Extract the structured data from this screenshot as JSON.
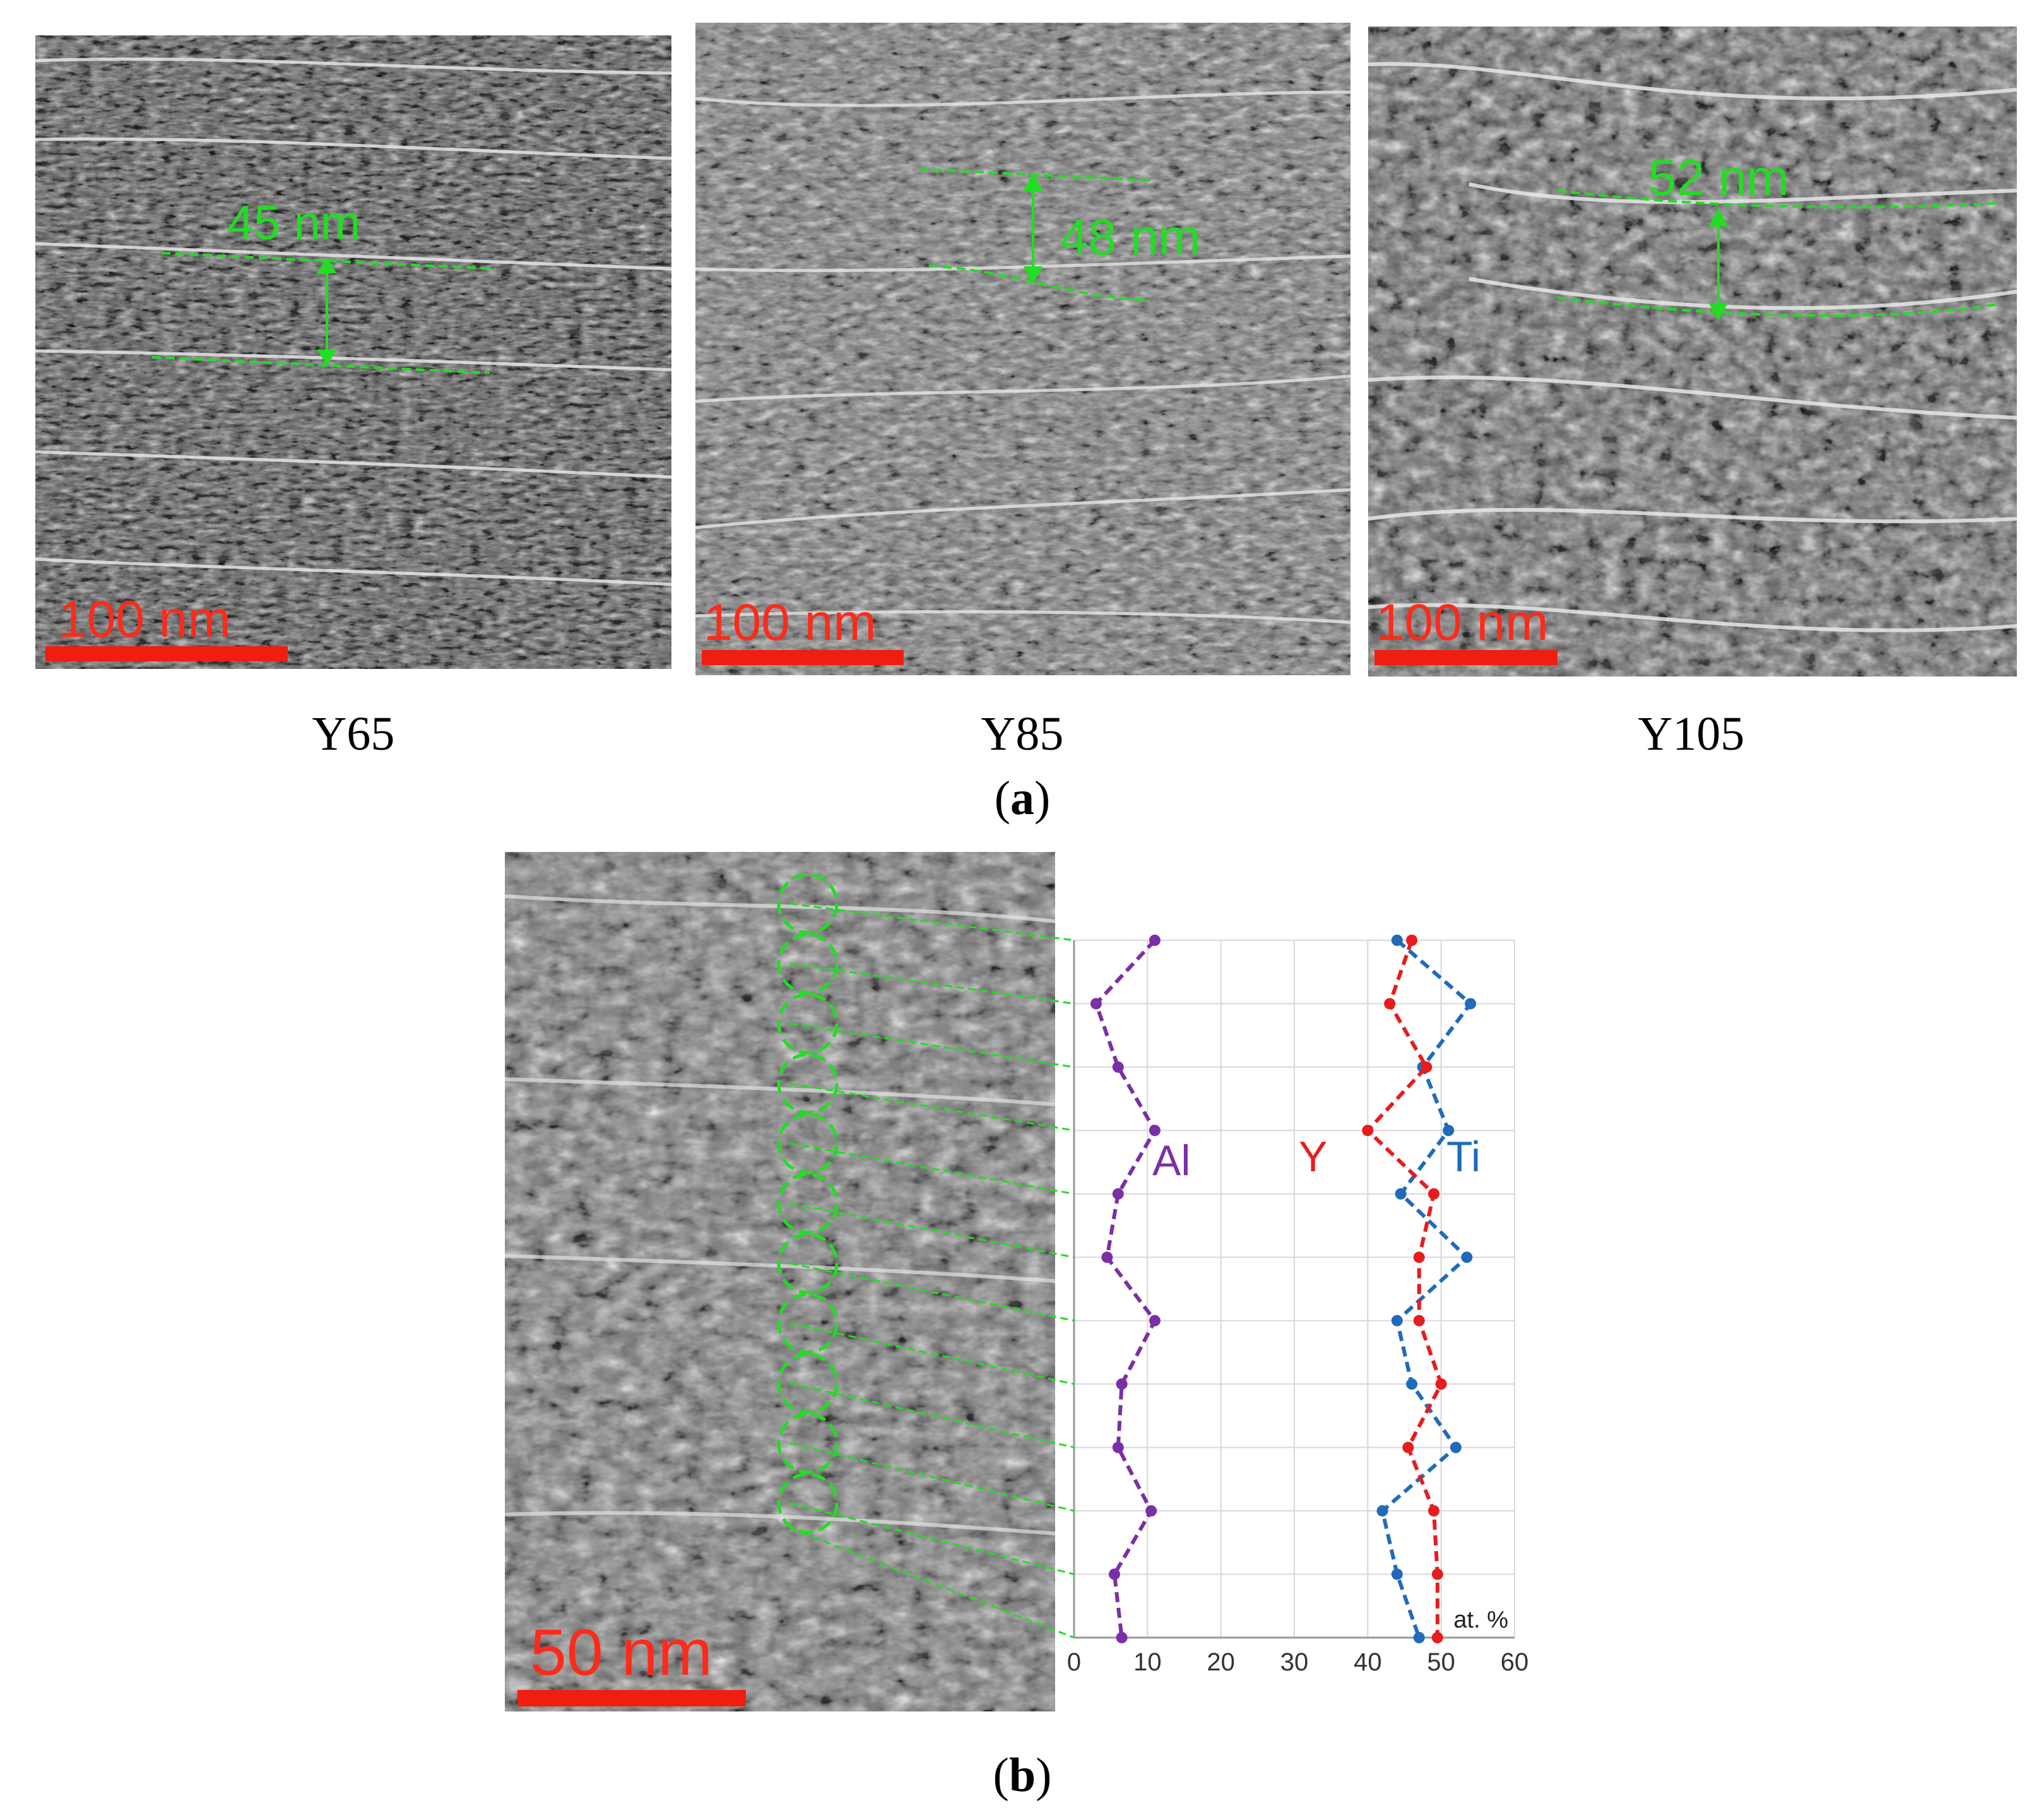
{
  "panel_a": {
    "label_open": "(",
    "label_letter": "a",
    "label_close": ")",
    "images": [
      {
        "caption": "Y65",
        "scale": "100 nm",
        "measurement": "45 nm"
      },
      {
        "caption": "Y85",
        "scale": "100 nm",
        "measurement": "48 nm"
      },
      {
        "caption": "Y105",
        "scale": "100 nm",
        "measurement": "52 nm"
      }
    ]
  },
  "panel_b": {
    "label_open": "(",
    "label_letter": "b",
    "label_close": ")",
    "scale": "50 nm",
    "element_labels": {
      "al": "Al",
      "y": "Y",
      "ti": "Ti"
    }
  },
  "colors": {
    "al": "#7b2fa6",
    "y": "#e81c1c",
    "ti": "#1f6bb8",
    "measure": "#22dd22",
    "scalebar": "#f01e10"
  },
  "chart_data": {
    "type": "line",
    "orientation": "profile",
    "unit_label": "at. %",
    "xlim": [
      0,
      60
    ],
    "xticks": [
      0,
      10,
      20,
      30,
      40,
      50,
      60
    ],
    "points": 12,
    "series": [
      {
        "name": "Al",
        "values": [
          11,
          3,
          6,
          11,
          6,
          4.5,
          11,
          6.5,
          6,
          10.5,
          5.5,
          6.5
        ]
      },
      {
        "name": "Y",
        "values": [
          46,
          43,
          48,
          40,
          49,
          47,
          47,
          50,
          45.5,
          49,
          49.5,
          49.5
        ]
      },
      {
        "name": "Ti",
        "values": [
          44,
          54,
          47.5,
          51,
          44.5,
          53.5,
          44,
          46,
          52,
          42,
          44,
          47
        ]
      }
    ]
  }
}
